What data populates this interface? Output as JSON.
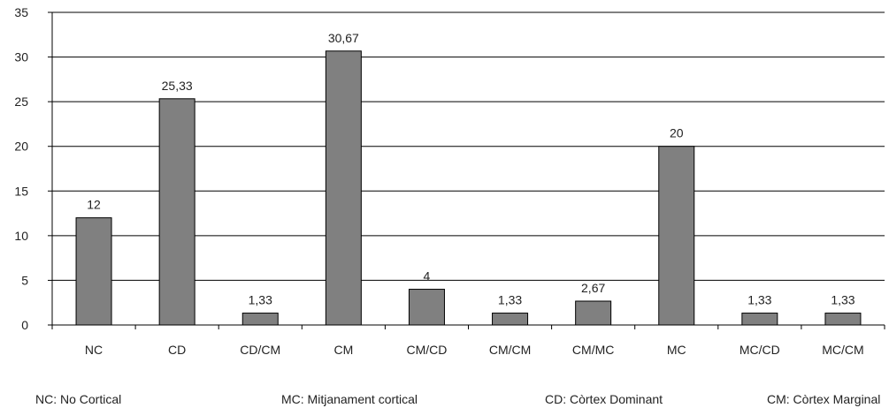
{
  "chart_data": {
    "type": "bar",
    "categories": [
      "NC",
      "CD",
      "CD/CM",
      "CM",
      "CM/CD",
      "CM/CM",
      "CM/MC",
      "MC",
      "MC/CD",
      "MC/CM"
    ],
    "values": [
      12,
      25.33,
      1.33,
      30.67,
      4,
      1.33,
      2.67,
      20,
      1.33,
      1.33
    ],
    "data_labels": [
      "12",
      "25,33",
      "1,33",
      "30,67",
      "4",
      "1,33",
      "2,67",
      "20",
      "1,33",
      "1,33"
    ],
    "yticks": [
      "0",
      "5",
      "10",
      "15",
      "20",
      "25",
      "30",
      "35"
    ],
    "ylim": [
      0,
      35
    ],
    "grid": true,
    "bar_color": "#808080"
  },
  "legend": {
    "items": [
      "NC: No Cortical",
      "MC: Mitjanament cortical",
      "CD: Còrtex Dominant",
      "CM: Còrtex Marginal"
    ]
  }
}
